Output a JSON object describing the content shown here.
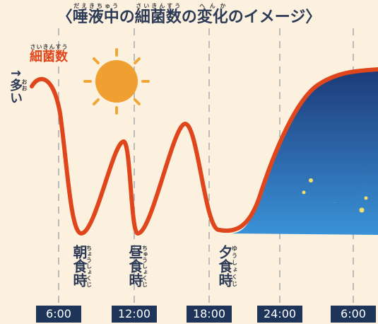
{
  "title": {
    "segments": [
      {
        "text": "〈"
      },
      {
        "text": "唾液中",
        "ruby": "だえきちゅう"
      },
      {
        "text": "の"
      },
      {
        "text": "細菌数",
        "ruby": "さいきんすう"
      },
      {
        "text": "の"
      },
      {
        "text": "変化",
        "ruby": "へんか"
      },
      {
        "text": "のイメージ〉"
      }
    ]
  },
  "axis_label": {
    "text": "細菌数",
    "ruby": "さいきんすう"
  },
  "high_label": {
    "arrow": "↑",
    "text": "多",
    "ruby": "おお",
    "suffix": "い"
  },
  "meals": [
    {
      "text": "朝食時",
      "ruby": "ちょうしょくじ"
    },
    {
      "text": "昼食時",
      "ruby": "ちゅうしょくじ"
    },
    {
      "text": "夕食時",
      "ruby": "ゆうしょくじ"
    }
  ],
  "times": [
    "6:00",
    "12:00",
    "18:00",
    "24:00",
    "6:00"
  ]
}
